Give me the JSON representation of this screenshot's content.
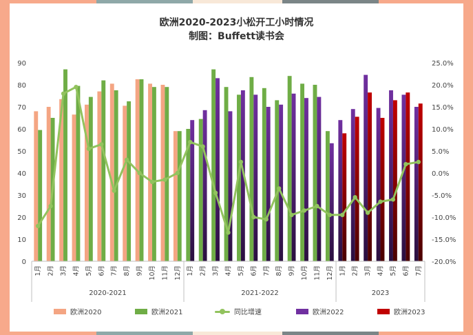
{
  "title_line1": "欧洲2020-2023小松开工小时情况",
  "title_line2": "制图：Buffett读书会",
  "legend": {
    "e2020": "欧洲2020",
    "e2021": "欧洲2021",
    "yoy": "同比增速",
    "e2022": "欧洲2022",
    "e2023": "欧洲2023"
  },
  "colors": {
    "e2020": "#f4a583",
    "e2021": "#6fad46",
    "yoy": "#92c35e",
    "e2022": "#7030a0",
    "e2023": "#c00000"
  },
  "chart_data": {
    "type": "bar+line",
    "groups": [
      {
        "label": "2020-2021",
        "months": [
          "1月",
          "2月",
          "3月",
          "4月",
          "5月",
          "6月",
          "7月",
          "8月",
          "9月",
          "10月",
          "11月",
          "12月"
        ]
      },
      {
        "label": "2021-2022",
        "months": [
          "1月",
          "2月",
          "3月",
          "4月",
          "5月",
          "6月",
          "7月",
          "8月",
          "9月",
          "10月",
          "11月",
          "12月"
        ]
      },
      {
        "label": "2023",
        "months": [
          "1月",
          "2月",
          "3月",
          "4月",
          "5月",
          "6月",
          "7月"
        ]
      }
    ],
    "series": [
      {
        "name": "欧洲2020",
        "key": "e2020",
        "group": 0,
        "values": [
          68,
          70,
          73.5,
          66.5,
          71,
          77,
          80.5,
          70.5,
          82.5,
          80.5,
          80,
          59
        ]
      },
      {
        "name": "欧洲2021",
        "key": "e2021",
        "group": 0,
        "values": [
          59.5,
          65,
          87,
          79.5,
          74.5,
          82,
          77.5,
          72.5,
          82.5,
          79,
          79,
          59
        ]
      },
      {
        "name": "欧洲2021",
        "key": "e2021",
        "group": 1,
        "values": [
          60,
          64.5,
          87,
          79,
          75.5,
          83.5,
          78.5,
          73,
          84,
          80.5,
          80,
          59
        ]
      },
      {
        "name": "欧洲2022",
        "key": "e2022",
        "group": 1,
        "values": [
          64,
          68.5,
          83,
          68,
          77.5,
          75.5,
          70,
          71,
          76,
          74,
          74.5,
          53.5
        ]
      },
      {
        "name": "欧洲2022",
        "key": "e2022",
        "group": 2,
        "values": [
          64,
          69,
          84.5,
          69.5,
          77.5,
          75.5,
          70
        ]
      },
      {
        "name": "欧洲2023",
        "key": "e2023",
        "group": 2,
        "values": [
          58,
          65.5,
          76.5,
          65,
          73,
          76.5,
          71.5
        ]
      }
    ],
    "yoy": {
      "name": "同比增速",
      "values": [
        -12,
        -7.5,
        18,
        19.5,
        5.5,
        6.5,
        -4,
        3,
        0,
        -2,
        -1.5,
        0,
        7,
        6,
        -4.5,
        -13.5,
        2.5,
        -10,
        -10.5,
        -3.5,
        -9.5,
        -8.5,
        -7.5,
        -9.5,
        -9.5,
        -5.5,
        -9,
        -6.5,
        -6,
        2,
        2.5
      ]
    },
    "y_left": {
      "min": 0,
      "max": 90,
      "ticks": [
        "0",
        "10",
        "20",
        "30",
        "40",
        "50",
        "60",
        "70",
        "80",
        "90"
      ]
    },
    "y_right": {
      "min": -20,
      "max": 25,
      "ticks": [
        "-20.0%",
        "-15.0%",
        "-10.0%",
        "-5.0%",
        "0.0%",
        "5.0%",
        "10.0%",
        "15.0%",
        "20.0%",
        "25.0%"
      ]
    },
    "legend_position": "bottom",
    "grid": false
  }
}
